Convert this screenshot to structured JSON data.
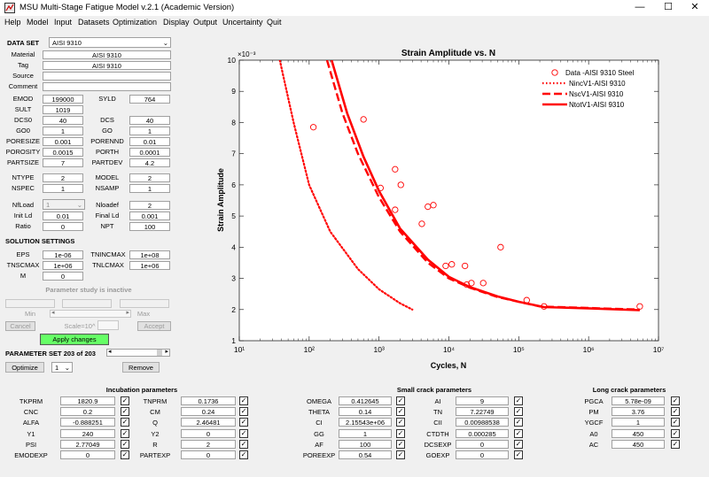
{
  "window": {
    "title": "MSU Multi-Stage Fatigue Model v.2.1 (Academic Version)",
    "minimize_glyph": "—",
    "maximize_glyph": "☐",
    "close_glyph": "✕"
  },
  "menu": [
    "Help",
    "Model",
    "Input",
    "Datasets",
    "Optimization",
    "Display",
    "Output",
    "Uncertainty",
    "Quit"
  ],
  "dataset": {
    "label": "DATA SET",
    "selected": "AISI 9310",
    "material_label": "Material",
    "material": "AISI 9310",
    "tag_label": "Tag",
    "tag": "AISI 9310",
    "source_label": "Source",
    "source": "",
    "comment_label": "Comment",
    "comment": ""
  },
  "params": {
    "emod_l": "EMOD",
    "emod": "199000",
    "syld_l": "SYLD",
    "syld": "764",
    "sult_l": "SULT",
    "sult": "1019",
    "dcs0_l": "DCS0",
    "dcs0": "40",
    "dcs_l": "DCS",
    "dcs": "40",
    "go0_l": "GO0",
    "go0": "1",
    "go_l": "GO",
    "go": "1",
    "poresize_l": "PORESIZE",
    "poresize": "0.001",
    "porennd_l": "PORENND",
    "porennd": "0.01",
    "porosity_l": "POROSITY",
    "porosity": "0.0015",
    "porth_l": "PORTH",
    "porth": "0.0001",
    "partsize_l": "PARTSIZE",
    "partsize": "7",
    "partdev_l": "PARTDEV",
    "partdev": "4.2",
    "ntype_l": "NTYPE",
    "ntype": "2",
    "model_l": "MODEL",
    "model": "2",
    "nspec_l": "NSPEC",
    "nspec": "1",
    "nsamp_l": "NSAMP",
    "nsamp": "1",
    "nfload_l": "NfLoad",
    "nfload": "1",
    "nloadef_l": "Nloadef",
    "nloadef": "2",
    "initld_l": "Init Ld",
    "initld": "0.01",
    "finalld_l": "Final Ld",
    "finalld": "0.001",
    "ratio_l": "Ratio",
    "ratio": "0",
    "npt_l": "NPT",
    "npt": "100"
  },
  "solution": {
    "title": "SOLUTION SETTINGS",
    "eps_l": "EPS",
    "eps": "1e-06",
    "tnincmax_l": "TNINCMAX",
    "tnincmax": "1e+08",
    "tnscmax_l": "TNSCMAX",
    "tnscmax": "1e+06",
    "tnlcmax_l": "TNLCMAX",
    "tnlcmax": "1e+06",
    "m_l": "M",
    "m": "0"
  },
  "param_study": {
    "status": "Parameter study is inactive",
    "min_label": "Min",
    "scale_label": "Scale=10^",
    "max_label": "Max",
    "cancel_label": "Cancel",
    "accept_label": "Accept",
    "apply_label": "Apply changes"
  },
  "param_set": {
    "label": "PARAMETER SET 203 of 203",
    "optimize_label": "Optimize",
    "optimize_value": "1",
    "remove_label": "Remove"
  },
  "incubation": {
    "title": "Incubation parameters",
    "left": [
      {
        "name": "TKPRM",
        "value": "1820.9",
        "checked": true
      },
      {
        "name": "CNC",
        "value": "0.2",
        "checked": true
      },
      {
        "name": "ALFA",
        "value": "-0.888251",
        "checked": true
      },
      {
        "name": "Y1",
        "value": "240",
        "checked": true
      },
      {
        "name": "PSI",
        "value": "2.77049",
        "checked": true
      },
      {
        "name": "EMODEXP",
        "value": "0",
        "checked": true
      }
    ],
    "right": [
      {
        "name": "TNPRM",
        "value": "0.1736",
        "checked": true
      },
      {
        "name": "CM",
        "value": "0.24",
        "checked": true
      },
      {
        "name": "Q",
        "value": "2.46481",
        "checked": true
      },
      {
        "name": "Y2",
        "value": "0",
        "checked": true
      },
      {
        "name": "R",
        "value": "2",
        "checked": true
      },
      {
        "name": "PARTEXP",
        "value": "0",
        "checked": true
      }
    ]
  },
  "small_crack": {
    "title": "Small crack parameters",
    "left": [
      {
        "name": "OMEGA",
        "value": "0.412645",
        "checked": true
      },
      {
        "name": "THETA",
        "value": "0.14",
        "checked": true
      },
      {
        "name": "CI",
        "value": "2.15543e+06",
        "checked": true
      },
      {
        "name": "GG",
        "value": "1",
        "checked": true
      },
      {
        "name": "AF",
        "value": "100",
        "checked": true
      },
      {
        "name": "POREEXP",
        "value": "0.54",
        "checked": true
      }
    ],
    "right": [
      {
        "name": "AI",
        "value": "9",
        "checked": true
      },
      {
        "name": "TN",
        "value": "7.22749",
        "checked": true
      },
      {
        "name": "CII",
        "value": "0.00988538",
        "checked": true
      },
      {
        "name": "CTDTH",
        "value": "0.000285",
        "checked": true
      },
      {
        "name": "DCSEXP",
        "value": "0",
        "checked": true
      },
      {
        "name": "GOEXP",
        "value": "0",
        "checked": true
      }
    ]
  },
  "long_crack": {
    "title": "Long crack parameters",
    "rows": [
      {
        "name": "PGCA",
        "value": "5.78e-09",
        "checked": true
      },
      {
        "name": "PM",
        "value": "3.76",
        "checked": true
      },
      {
        "name": "YGCF",
        "value": "1",
        "checked": true
      },
      {
        "name": "A0",
        "value": "450",
        "checked": true
      },
      {
        "name": "AC",
        "value": "450",
        "checked": true
      }
    ]
  },
  "chart_data": {
    "type": "scatter",
    "title": "Strain Amplitude vs. N",
    "xlabel": "Cycles, N",
    "ylabel": "Strain Amplitude",
    "y_multiplier": "×10⁻³",
    "x_scale": "log",
    "xlim": [
      10,
      10000000
    ],
    "ylim": [
      1,
      10
    ],
    "x_ticks": [
      10,
      100,
      1000,
      10000,
      100000,
      1000000,
      10000000
    ],
    "x_tick_labels": [
      "10¹",
      "10²",
      "10³",
      "10⁴",
      "10⁵",
      "10⁶",
      "10⁷"
    ],
    "y_ticks": [
      1,
      2,
      3,
      4,
      5,
      6,
      7,
      8,
      9,
      10
    ],
    "legend_position": "top-right",
    "color": "#ff0000",
    "series": [
      {
        "name": "Data -AISI 9310 Steel",
        "style": "circle",
        "points": [
          [
            115,
            7.85
          ],
          [
            600,
            8.1
          ],
          [
            1050,
            5.9
          ],
          [
            1700,
            6.5
          ],
          [
            1700,
            5.2
          ],
          [
            2050,
            6.0
          ],
          [
            4100,
            4.75
          ],
          [
            5000,
            5.3
          ],
          [
            6000,
            5.35
          ],
          [
            9000,
            3.4
          ],
          [
            11000,
            3.45
          ],
          [
            17000,
            3.4
          ],
          [
            18000,
            2.8
          ],
          [
            21000,
            2.85
          ],
          [
            31000,
            2.85
          ],
          [
            55000,
            4.0
          ],
          [
            130000,
            2.3
          ],
          [
            230000,
            2.1
          ],
          [
            5400000,
            2.1
          ]
        ]
      },
      {
        "name": "NincV1-AISI 9310",
        "style": "dotted",
        "points": [
          [
            38,
            10
          ],
          [
            60,
            8.0
          ],
          [
            100,
            6.0
          ],
          [
            200,
            4.5
          ],
          [
            500,
            3.3
          ],
          [
            1000,
            2.65
          ],
          [
            2000,
            2.2
          ],
          [
            3000,
            2.0
          ]
        ]
      },
      {
        "name": "NscV1-AISI 9310",
        "style": "dashed",
        "points": [
          [
            180,
            10
          ],
          [
            300,
            8.3
          ],
          [
            500,
            7.0
          ],
          [
            1000,
            5.6
          ],
          [
            2000,
            4.5
          ],
          [
            5000,
            3.5
          ],
          [
            10000,
            3.0
          ],
          [
            20000,
            2.7
          ],
          [
            50000,
            2.4
          ],
          [
            100000,
            2.25
          ],
          [
            200000,
            2.1
          ],
          [
            1000000,
            2.05
          ],
          [
            5400000,
            2.0
          ]
        ]
      },
      {
        "name": "NtotV1-AISI 9310",
        "style": "solid",
        "points": [
          [
            210,
            10
          ],
          [
            350,
            8.3
          ],
          [
            600,
            6.9
          ],
          [
            1000,
            5.8
          ],
          [
            2000,
            4.6
          ],
          [
            5000,
            3.6
          ],
          [
            10000,
            3.05
          ],
          [
            20000,
            2.72
          ],
          [
            50000,
            2.42
          ],
          [
            100000,
            2.25
          ],
          [
            230000,
            2.08
          ],
          [
            1000000,
            2.04
          ],
          [
            5400000,
            1.98
          ]
        ]
      }
    ]
  }
}
